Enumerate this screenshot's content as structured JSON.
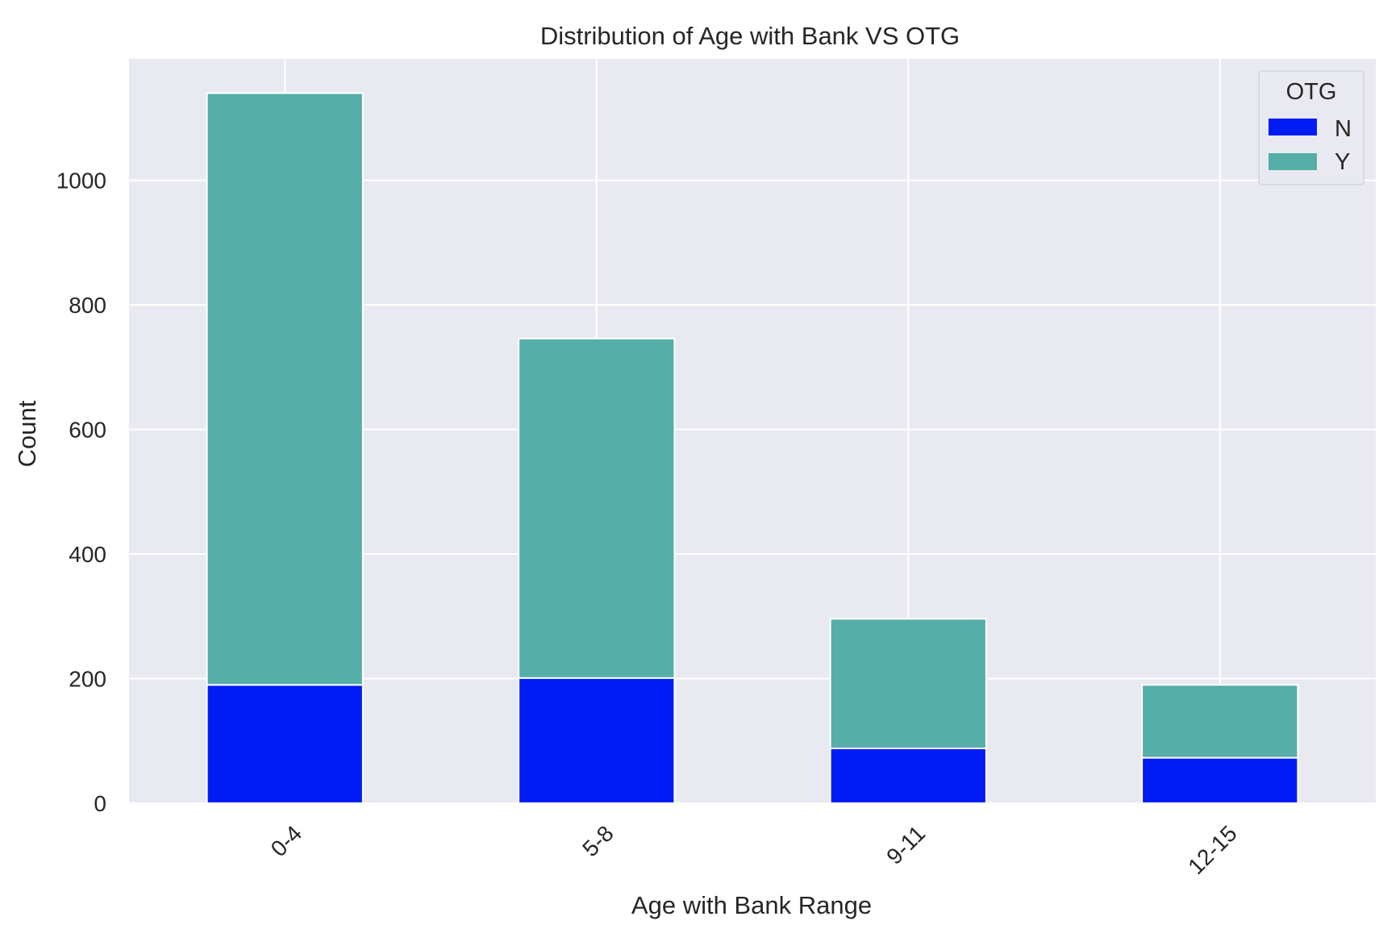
{
  "chart_data": {
    "type": "bar",
    "stacked": true,
    "title": "Distribution of Age with Bank VS OTG",
    "xlabel": "Age with Bank Range",
    "ylabel": "Count",
    "categories": [
      "0-4",
      "5-8",
      "9-11",
      "12-15"
    ],
    "series": [
      {
        "name": "N",
        "values": [
          190,
          201,
          88,
          73
        ],
        "color": "#001cf5"
      },
      {
        "name": "Y",
        "values": [
          950,
          545,
          208,
          117
        ],
        "color": "#55aea8"
      }
    ],
    "ylim": [
      0,
      1195
    ],
    "yticks": [
      0,
      200,
      400,
      600,
      800,
      1000
    ],
    "grid": true,
    "legend": {
      "title": "OTG",
      "position": "top-right"
    },
    "background": "#e9eaf1",
    "gridColor": "#ffffff"
  }
}
